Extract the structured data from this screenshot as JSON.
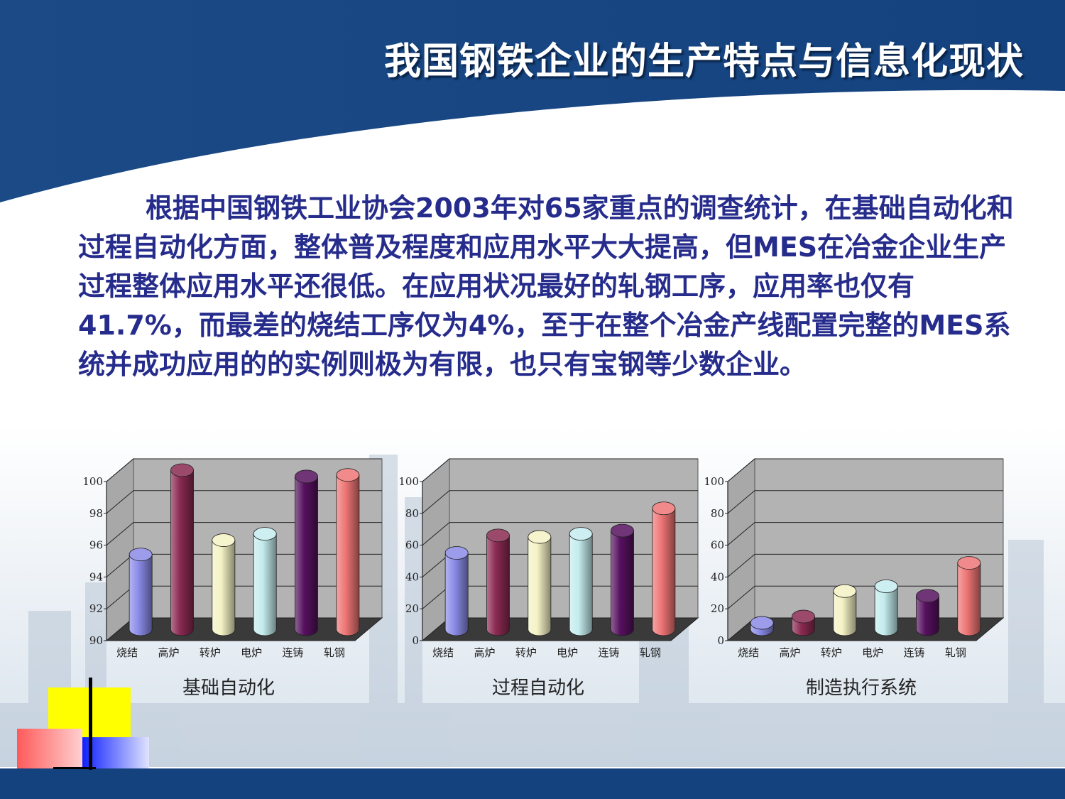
{
  "slide": {
    "title": "我国钢铁企业的生产特点与信息化现状",
    "body": "根据中国钢铁工业协会2003年对65家重点的调查统计，在基础自动化和过程自动化方面，整体普及程度和应用水平大大提高，但MES在冶金企业生产过程整体应用水平还很低。在应用状况最好的轧钢工序，应用率也仅有41.7%，而最差的烧结工序仅为4%，至于在整个冶金产线配置完整的MES系统并成功应用的的实例则极为有限，也只有宝钢等少数企业。",
    "colors": {
      "header": "#1f4e8c",
      "title": "#ffffff",
      "text": "#262c8c"
    }
  },
  "chart_data": [
    {
      "type": "bar",
      "title": "基础自动化",
      "categories": [
        "烧结",
        "高炉",
        "转炉",
        "电炉",
        "连铸",
        "轧钢"
      ],
      "values": [
        94.7,
        100,
        95.6,
        96.0,
        99.6,
        99.7
      ],
      "ylim": [
        90,
        100
      ],
      "yticks": [
        "90",
        "92",
        "94",
        "96",
        "98",
        "100"
      ],
      "colors": [
        "#8b8be8",
        "#8b2a52",
        "#f4f2c4",
        "#c4ecee",
        "#56115f",
        "#ee7575"
      ]
    },
    {
      "type": "bar",
      "title": "过程自动化",
      "categories": [
        "烧结",
        "高炉",
        "转炉",
        "电炉",
        "连铸",
        "轧钢"
      ],
      "values": [
        48,
        59,
        58,
        60,
        62,
        76
      ],
      "ylim": [
        0,
        100
      ],
      "yticks": [
        "0",
        "20",
        "40",
        "60",
        "80",
        "100"
      ],
      "colors": [
        "#8b8be8",
        "#8b2a52",
        "#f4f2c4",
        "#c4ecee",
        "#56115f",
        "#ee7575"
      ]
    },
    {
      "type": "bar",
      "title": "制造执行系统",
      "categories": [
        "烧结",
        "高炉",
        "转炉",
        "电炉",
        "连铸",
        "轧钢"
      ],
      "values": [
        4,
        8,
        24,
        27,
        21,
        41.7
      ],
      "ylim": [
        0,
        100
      ],
      "yticks": [
        "0",
        "20",
        "40",
        "60",
        "80",
        "100"
      ],
      "colors": [
        "#8b8be8",
        "#8b2a52",
        "#f4f2c4",
        "#c4ecee",
        "#56115f",
        "#ee7575"
      ]
    }
  ]
}
